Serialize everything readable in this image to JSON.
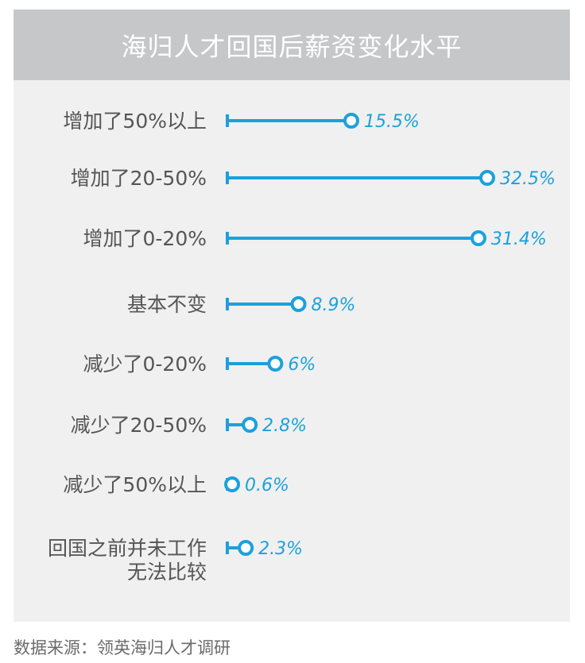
{
  "title": "海归人才回国后薪资变化水平",
  "source": "数据来源：领英海归人才调研",
  "colors": {
    "accent": "#1ba1dc",
    "label": "#555555",
    "header_bg": "#c6c7c9",
    "panel_bg": "#f0f0f0"
  },
  "chart_data": {
    "type": "bar",
    "orientation": "horizontal",
    "style": "lollipop",
    "title": "海归人才回国后薪资变化水平",
    "categories": [
      [
        "增加了50%以上"
      ],
      [
        "增加了20-50%"
      ],
      [
        "增加了0-20%"
      ],
      [
        "基本不变"
      ],
      [
        "减少了0-20%"
      ],
      [
        "减少了20-50%"
      ],
      [
        "减少了50%以上"
      ],
      [
        "回国之前并未工作",
        "无法比较"
      ]
    ],
    "values": [
      15.5,
      32.5,
      31.4,
      8.9,
      6,
      2.8,
      0.6,
      2.3
    ],
    "value_labels": [
      "15.5%",
      "32.5%",
      "31.4%",
      "8.9%",
      "6%",
      "2.8%",
      "0.6%",
      "2.3%"
    ],
    "xlim": [
      0,
      32.5
    ],
    "grid": false,
    "legend": "none"
  }
}
